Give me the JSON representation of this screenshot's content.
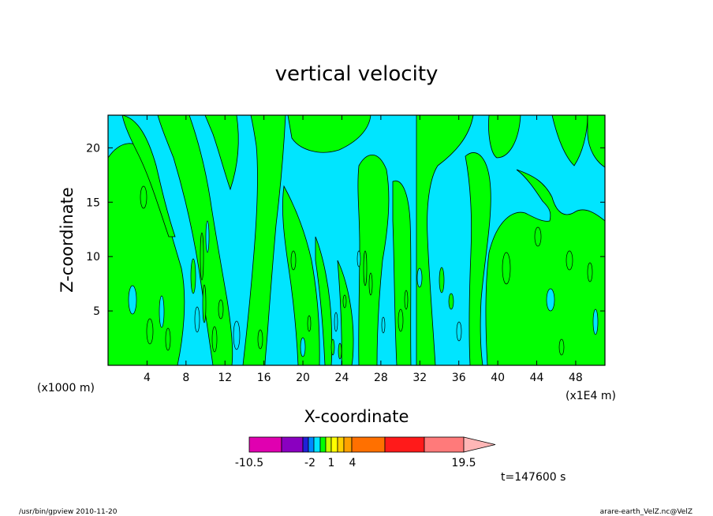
{
  "chart_data": {
    "type": "heatmap",
    "title": "vertical velocity",
    "xlabel": "X-coordinate",
    "ylabel": "Z-coordinate",
    "x_unit_left": "(x1000 m)",
    "x_unit_right": "(x1E4 m)",
    "xlim": [
      0,
      51
    ],
    "ylim": [
      0,
      23
    ],
    "x_ticks": [
      "4",
      "8",
      "12",
      "16",
      "20",
      "24",
      "28",
      "32",
      "36",
      "40",
      "44",
      "48"
    ],
    "y_ticks": [
      "5",
      "10",
      "15",
      "20"
    ],
    "field_colors": {
      "positive": "#00ff00",
      "negative": "#00e5ff"
    },
    "colorbar": {
      "levels": [
        -10.5,
        -2,
        1,
        4,
        19.5
      ],
      "tick_labels": [
        "-10.5",
        "-2",
        "1",
        "4",
        "19.5"
      ],
      "colors": [
        "#e000b0",
        "#8a00c0",
        "#2020d8",
        "#0088ff",
        "#00e5ff",
        "#00ff00",
        "#c8ff00",
        "#ffff00",
        "#ffd000",
        "#ffa000",
        "#ff7000",
        "#ff1a1a",
        "#ff7a7a",
        "#ffb6b6"
      ]
    },
    "time_label": "t=147600 s"
  },
  "footer": {
    "left": "/usr/bin/gpview   2010-11-20",
    "right": "arare-earth_VelZ.nc@VelZ"
  }
}
